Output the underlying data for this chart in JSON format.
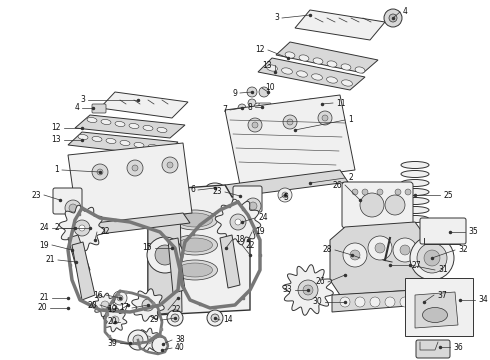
{
  "bg_color": "#ffffff",
  "fig_width": 4.9,
  "fig_height": 3.6,
  "dpi": 100,
  "line_color": "#333333",
  "label_color": "#111111",
  "label_fs": 5.5,
  "lw_main": 0.7,
  "lw_thin": 0.5
}
